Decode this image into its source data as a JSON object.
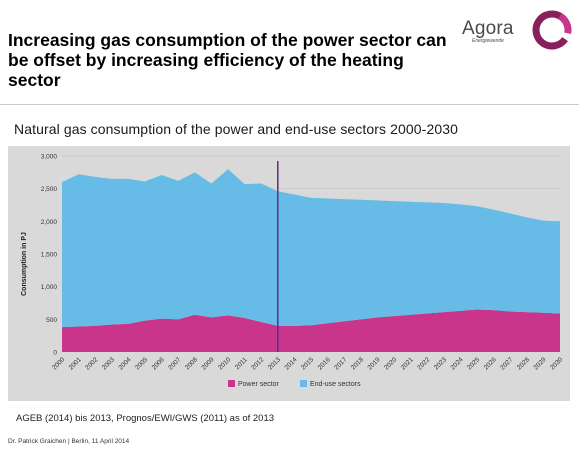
{
  "header": {
    "title": "Increasing gas consumption of the power sector can be offset by increasing efficiency of the heating sector",
    "logo_name": "Agora",
    "logo_sub": "Energiewende",
    "logo_color": "#8a1f5d"
  },
  "subtitle": "Natural gas consumption of the power and end-use sectors 2000-2030",
  "source": "AGEB (2014) bis 2013, Prognos/EWI/GWS (2011) as of 2013",
  "footer": "Dr. Patrick Graichen | Berlin, 11 April 2014",
  "chart_data": {
    "type": "area",
    "stacked": true,
    "x": [
      2000,
      2001,
      2002,
      2003,
      2004,
      2005,
      2006,
      2007,
      2008,
      2009,
      2010,
      2011,
      2012,
      2013,
      2014,
      2015,
      2016,
      2017,
      2018,
      2019,
      2020,
      2021,
      2022,
      2023,
      2024,
      2025,
      2026,
      2027,
      2028,
      2029,
      2030
    ],
    "series": [
      {
        "name": "Power sector",
        "color": "#c8358b",
        "values": [
          380,
          390,
          400,
          420,
          430,
          480,
          510,
          500,
          570,
          530,
          560,
          520,
          460,
          400,
          400,
          410,
          440,
          470,
          500,
          530,
          550,
          570,
          590,
          610,
          630,
          650,
          640,
          620,
          610,
          600,
          590
        ]
      },
      {
        "name": "End-use sectors",
        "color": "#66bce7",
        "values": [
          2220,
          2330,
          2280,
          2230,
          2220,
          2130,
          2200,
          2120,
          2180,
          2050,
          2240,
          2050,
          2120,
          2060,
          2010,
          1950,
          1910,
          1870,
          1830,
          1790,
          1760,
          1730,
          1700,
          1670,
          1630,
          1580,
          1540,
          1500,
          1450,
          1410,
          1410
        ]
      }
    ],
    "ylabel": "Consumption in PJ",
    "xlabel": "",
    "ylim": [
      0,
      3000
    ],
    "yticks": [
      0,
      500,
      1000,
      1500,
      2000,
      2500,
      3000
    ],
    "ytick_labels": [
      "0",
      "500",
      "1,000",
      "1,500",
      "2,000",
      "2,500",
      "3,000"
    ],
    "grid": true,
    "plot_bg": "#d9d9d9",
    "marker_year": 2013,
    "marker_color": "#5b2c8a",
    "legend_position": "bottom-center"
  }
}
